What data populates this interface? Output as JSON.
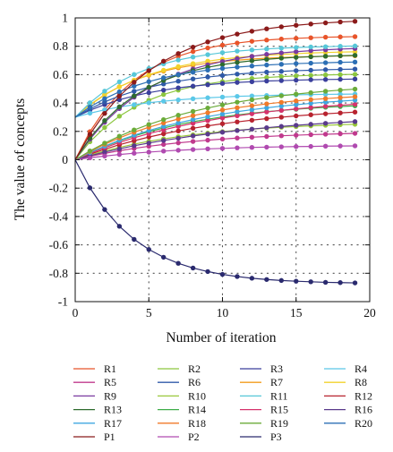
{
  "chart_data": {
    "type": "line",
    "title": "",
    "xlabel": "Number of iteration",
    "ylabel": "The value of concepts",
    "xlim": [
      0,
      20
    ],
    "ylim": [
      -1,
      1
    ],
    "x_ticks": [
      0,
      5,
      10,
      15,
      20
    ],
    "y_ticks": [
      -1,
      -0.8,
      -0.6,
      -0.4,
      -0.2,
      0,
      0.2,
      0.4,
      0.6,
      0.8,
      1
    ],
    "x_tick_labels": [
      "0",
      "5",
      "10",
      "15",
      "20"
    ],
    "y_tick_labels": [
      "-1",
      "-0.8",
      "-0.6",
      "-0.4",
      "-0.2",
      "0",
      "0.2",
      "0.4",
      "0.6",
      "0.8",
      "1"
    ],
    "grid": "dotted",
    "legend_position": "bottom",
    "x": [
      0,
      1,
      2,
      3,
      4,
      5,
      6,
      7,
      8,
      9,
      10,
      11,
      12,
      13,
      14,
      15,
      16,
      17,
      18,
      19
    ],
    "series": [
      {
        "name": "R1",
        "color": "#e8542a",
        "values": [
          0,
          0.198,
          0.351,
          0.469,
          0.561,
          0.632,
          0.687,
          0.73,
          0.763,
          0.788,
          0.808,
          0.823,
          0.835,
          0.844,
          0.851,
          0.856,
          0.86,
          0.864,
          0.866,
          0.868
        ]
      },
      {
        "name": "R2",
        "color": "#8cc63f",
        "values": [
          0,
          0.127,
          0.227,
          0.307,
          0.37,
          0.42,
          0.46,
          0.491,
          0.516,
          0.535,
          0.551,
          0.563,
          0.573,
          0.58,
          0.586,
          0.591,
          0.595,
          0.598,
          0.6,
          0.602
        ]
      },
      {
        "name": "R3",
        "color": "#3a3f9c",
        "values": [
          0.3,
          0.349,
          0.389,
          0.423,
          0.45,
          0.473,
          0.491,
          0.507,
          0.519,
          0.529,
          0.538,
          0.545,
          0.55,
          0.555,
          0.558,
          0.561,
          0.564,
          0.566,
          0.567,
          0.569
        ]
      },
      {
        "name": "R4",
        "color": "#5bc8e8",
        "values": [
          0.3,
          0.328,
          0.352,
          0.372,
          0.388,
          0.402,
          0.413,
          0.422,
          0.43,
          0.437,
          0.442,
          0.447,
          0.45,
          0.453,
          0.456,
          0.458,
          0.46,
          0.461,
          0.462,
          0.463
        ]
      },
      {
        "name": "R5",
        "color": "#c0398d",
        "values": [
          0,
          0.024,
          0.045,
          0.064,
          0.08,
          0.095,
          0.108,
          0.119,
          0.129,
          0.138,
          0.146,
          0.153,
          0.159,
          0.164,
          0.169,
          0.173,
          0.177,
          0.18,
          0.183,
          0.186
        ]
      },
      {
        "name": "R6",
        "color": "#2f5aa8",
        "values": [
          0.3,
          0.359,
          0.408,
          0.449,
          0.483,
          0.511,
          0.534,
          0.554,
          0.57,
          0.583,
          0.594,
          0.604,
          0.611,
          0.618,
          0.623,
          0.628,
          0.631,
          0.635,
          0.637,
          0.639
        ]
      },
      {
        "name": "R7",
        "color": "#f39c1c",
        "values": [
          0.3,
          0.388,
          0.459,
          0.515,
          0.56,
          0.596,
          0.625,
          0.648,
          0.666,
          0.681,
          0.693,
          0.702,
          0.71,
          0.716,
          0.721,
          0.724,
          0.727,
          0.73,
          0.732,
          0.733
        ]
      },
      {
        "name": "R8",
        "color": "#f2d22c",
        "values": [
          0.3,
          0.386,
          0.457,
          0.514,
          0.561,
          0.6,
          0.631,
          0.657,
          0.678,
          0.695,
          0.709,
          0.72,
          0.73,
          0.737,
          0.743,
          0.748,
          0.753,
          0.756,
          0.759,
          0.761
        ]
      },
      {
        "name": "R9",
        "color": "#7a3aa0",
        "values": [
          0,
          0.145,
          0.264,
          0.361,
          0.441,
          0.506,
          0.56,
          0.604,
          0.64,
          0.669,
          0.693,
          0.713,
          0.729,
          0.743,
          0.753,
          0.762,
          0.769,
          0.775,
          0.78,
          0.784
        ]
      },
      {
        "name": "R10",
        "color": "#9ac83c",
        "values": [
          0,
          0.033,
          0.062,
          0.087,
          0.11,
          0.13,
          0.147,
          0.163,
          0.176,
          0.188,
          0.198,
          0.208,
          0.216,
          0.223,
          0.229,
          0.234,
          0.239,
          0.243,
          0.247,
          0.25
        ]
      },
      {
        "name": "R11",
        "color": "#57c7d8",
        "values": [
          0.3,
          0.402,
          0.484,
          0.549,
          0.601,
          0.643,
          0.676,
          0.703,
          0.724,
          0.741,
          0.755,
          0.766,
          0.774,
          0.781,
          0.787,
          0.791,
          0.795,
          0.797,
          0.8,
          0.802
        ]
      },
      {
        "name": "R12",
        "color": "#b8232f",
        "values": [
          0,
          0.039,
          0.074,
          0.106,
          0.134,
          0.16,
          0.183,
          0.203,
          0.222,
          0.239,
          0.254,
          0.267,
          0.279,
          0.29,
          0.3,
          0.309,
          0.317,
          0.324,
          0.33,
          0.336
        ]
      },
      {
        "name": "R13",
        "color": "#2e6b2e",
        "values": [
          0,
          0.154,
          0.276,
          0.373,
          0.45,
          0.511,
          0.559,
          0.597,
          0.628,
          0.652,
          0.671,
          0.686,
          0.698,
          0.708,
          0.716,
          0.722,
          0.726,
          0.73,
          0.733,
          0.736
        ]
      },
      {
        "name": "R14",
        "color": "#3fae49",
        "values": [
          0,
          0.05,
          0.094,
          0.133,
          0.168,
          0.198,
          0.224,
          0.248,
          0.268,
          0.286,
          0.302,
          0.316,
          0.328,
          0.339,
          0.348,
          0.356,
          0.363,
          0.37,
          0.375,
          0.38
        ]
      },
      {
        "name": "R15",
        "color": "#d6336c",
        "values": [
          0,
          0.045,
          0.085,
          0.122,
          0.155,
          0.184,
          0.211,
          0.235,
          0.257,
          0.276,
          0.294,
          0.31,
          0.324,
          0.337,
          0.348,
          0.359,
          0.368,
          0.377,
          0.384,
          0.391
        ]
      },
      {
        "name": "R16",
        "color": "#5a3a8c",
        "values": [
          0,
          0.028,
          0.054,
          0.077,
          0.099,
          0.118,
          0.136,
          0.152,
          0.168,
          0.181,
          0.194,
          0.206,
          0.216,
          0.226,
          0.235,
          0.243,
          0.25,
          0.257,
          0.263,
          0.269
        ]
      },
      {
        "name": "R17",
        "color": "#3fa7e0",
        "values": [
          0,
          0.051,
          0.096,
          0.137,
          0.173,
          0.206,
          0.235,
          0.26,
          0.283,
          0.304,
          0.322,
          0.339,
          0.353,
          0.366,
          0.378,
          0.388,
          0.398,
          0.406,
          0.413,
          0.42
        ]
      },
      {
        "name": "R18",
        "color": "#f07a2a",
        "values": [
          0,
          0.058,
          0.109,
          0.154,
          0.194,
          0.229,
          0.26,
          0.287,
          0.311,
          0.332,
          0.351,
          0.367,
          0.381,
          0.394,
          0.405,
          0.415,
          0.424,
          0.431,
          0.438,
          0.444
        ]
      },
      {
        "name": "R19",
        "color": "#6bab3a",
        "values": [
          0,
          0.062,
          0.117,
          0.166,
          0.21,
          0.249,
          0.283,
          0.314,
          0.341,
          0.365,
          0.387,
          0.406,
          0.423,
          0.438,
          0.451,
          0.463,
          0.473,
          0.483,
          0.491,
          0.498
        ]
      },
      {
        "name": "R20",
        "color": "#2c6fb5",
        "values": [
          0.3,
          0.372,
          0.431,
          0.479,
          0.519,
          0.551,
          0.578,
          0.6,
          0.617,
          0.632,
          0.644,
          0.653,
          0.661,
          0.668,
          0.673,
          0.678,
          0.681,
          0.684,
          0.687,
          0.689
        ]
      },
      {
        "name": "P1",
        "color": "#8b1a1a",
        "values": [
          0,
          0.179,
          0.327,
          0.448,
          0.547,
          0.628,
          0.695,
          0.749,
          0.794,
          0.831,
          0.861,
          0.886,
          0.906,
          0.923,
          0.937,
          0.948,
          0.957,
          0.965,
          0.971,
          0.976
        ]
      },
      {
        "name": "P2",
        "color": "#b04ab0",
        "values": [
          0,
          0.014,
          0.026,
          0.037,
          0.046,
          0.054,
          0.061,
          0.067,
          0.072,
          0.077,
          0.08,
          0.084,
          0.087,
          0.089,
          0.091,
          0.093,
          0.094,
          0.096,
          0.097,
          0.098
        ]
      },
      {
        "name": "P3",
        "color": "#2a2a6e",
        "values": [
          0,
          -0.198,
          -0.351,
          -0.469,
          -0.561,
          -0.632,
          -0.687,
          -0.73,
          -0.763,
          -0.788,
          -0.808,
          -0.823,
          -0.835,
          -0.844,
          -0.851,
          -0.856,
          -0.86,
          -0.864,
          -0.866,
          -0.868
        ]
      }
    ]
  }
}
